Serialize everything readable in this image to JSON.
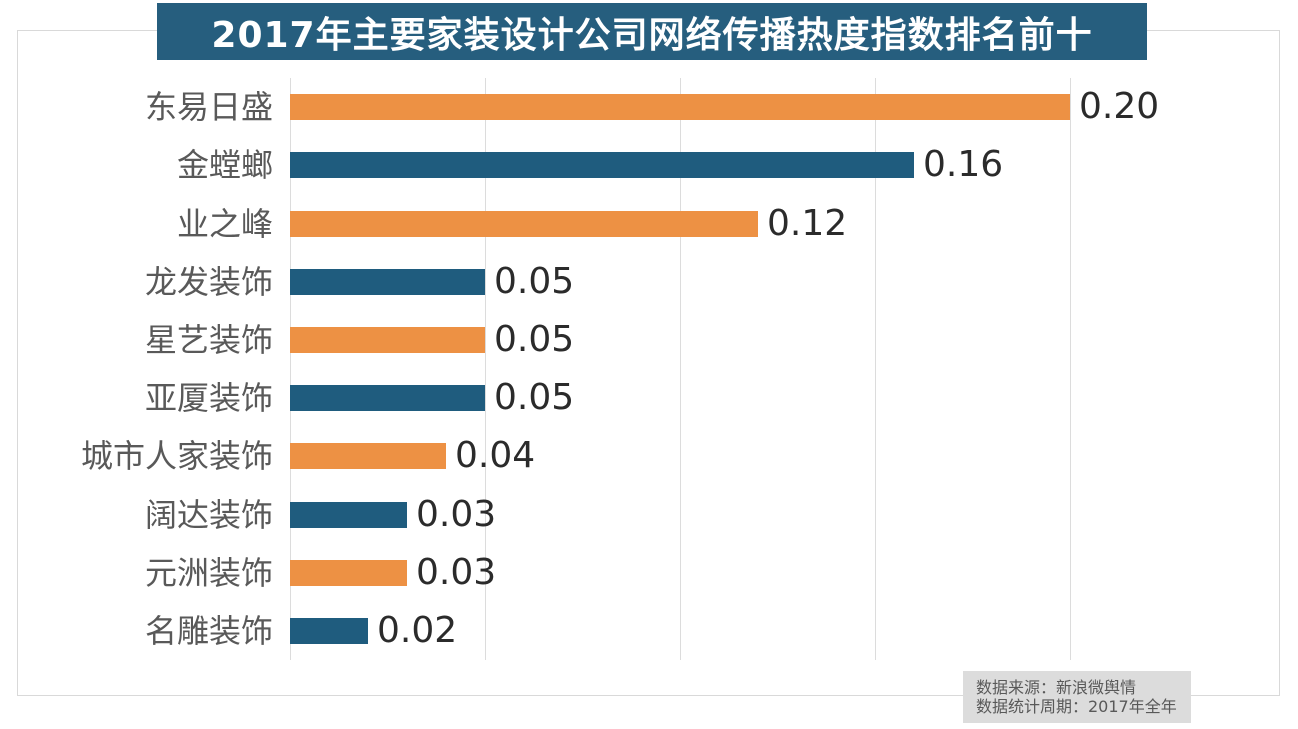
{
  "title": "2017年主要家装设计公司网络传播热度指数排名前十",
  "colors": {
    "orange": "#ED9144",
    "teal": "#1F5C7E",
    "title_bg": "#265E7E",
    "grid": "#DCDCDC",
    "category_label": "#595959",
    "value_label": "#2B2B2B",
    "footer_bg": "#DCDCDC",
    "footer_text": "#595959",
    "canvas_border": "#D9D9D9"
  },
  "footer": {
    "line1": "数据来源：新浪微舆情",
    "line2": "数据统计周期：2017年全年"
  },
  "chart_data": {
    "type": "bar",
    "orientation": "horizontal",
    "title": "2017年主要家装设计公司网络传播热度指数排名前十",
    "categories": [
      "东易日盛",
      "金螳螂",
      "业之峰",
      "龙发装饰",
      "星艺装饰",
      "亚厦装饰",
      "城市人家装饰",
      "阔达装饰",
      "元洲装饰",
      "名雕装饰"
    ],
    "values": [
      0.2,
      0.16,
      0.12,
      0.05,
      0.05,
      0.05,
      0.04,
      0.03,
      0.03,
      0.02
    ],
    "value_labels": [
      "0.20",
      "0.16",
      "0.12",
      "0.05",
      "0.05",
      "0.05",
      "0.04",
      "0.03",
      "0.03",
      "0.02"
    ],
    "xlim": [
      0,
      0.2
    ],
    "grid_interval": 0.05,
    "gridlines_shown": [
      0,
      0.05,
      0.1,
      0.15,
      0.2
    ],
    "bar_color_pattern": [
      "#ED9144",
      "#1F5C7E"
    ],
    "legend": "none",
    "axis_tick_labels_shown": false,
    "data_labels_position": "right-of-bar"
  }
}
